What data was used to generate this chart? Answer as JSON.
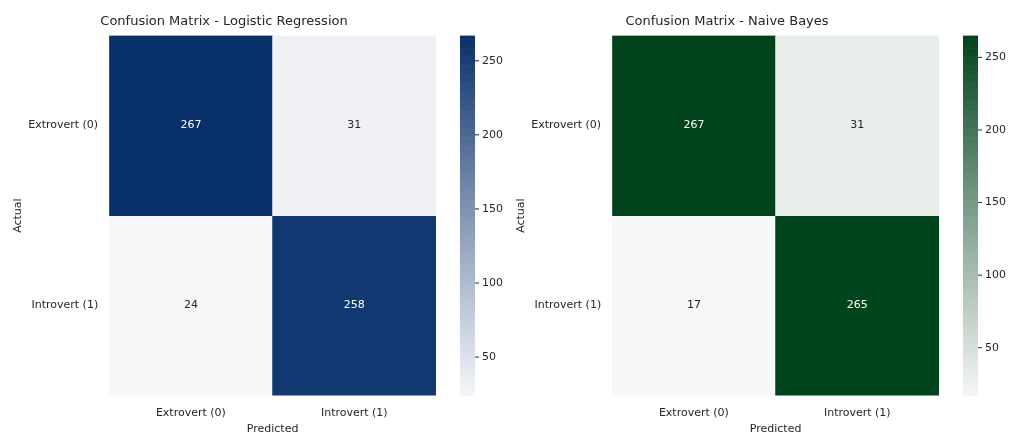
{
  "chart_data": [
    {
      "type": "heatmap",
      "title": "Confusion Matrix - Logistic Regression",
      "xlabel": "Predicted",
      "ylabel": "Actual",
      "categories": [
        "Extrovert (0)",
        "Introvert (1)"
      ],
      "y_categories": [
        "Extrovert (0)",
        "Introvert (1)"
      ],
      "cells": [
        [
          267,
          31
        ],
        [
          24,
          258
        ]
      ],
      "clim": [
        24,
        267
      ],
      "cticks": [
        50,
        100,
        150,
        200,
        250
      ],
      "color": "#08306b",
      "data_labels": true
    },
    {
      "type": "heatmap",
      "title": "Confusion Matrix - Naive Bayes",
      "xlabel": "Predicted",
      "ylabel": "Actual",
      "categories": [
        "Extrovert (0)",
        "Introvert (1)"
      ],
      "y_categories": [
        "Extrovert (0)",
        "Introvert (1)"
      ],
      "cells": [
        [
          267,
          31
        ],
        [
          17,
          265
        ]
      ],
      "clim": [
        17,
        265
      ],
      "cticks": [
        50,
        100,
        150,
        200,
        250
      ],
      "color": "#00441b",
      "data_labels": true
    }
  ]
}
